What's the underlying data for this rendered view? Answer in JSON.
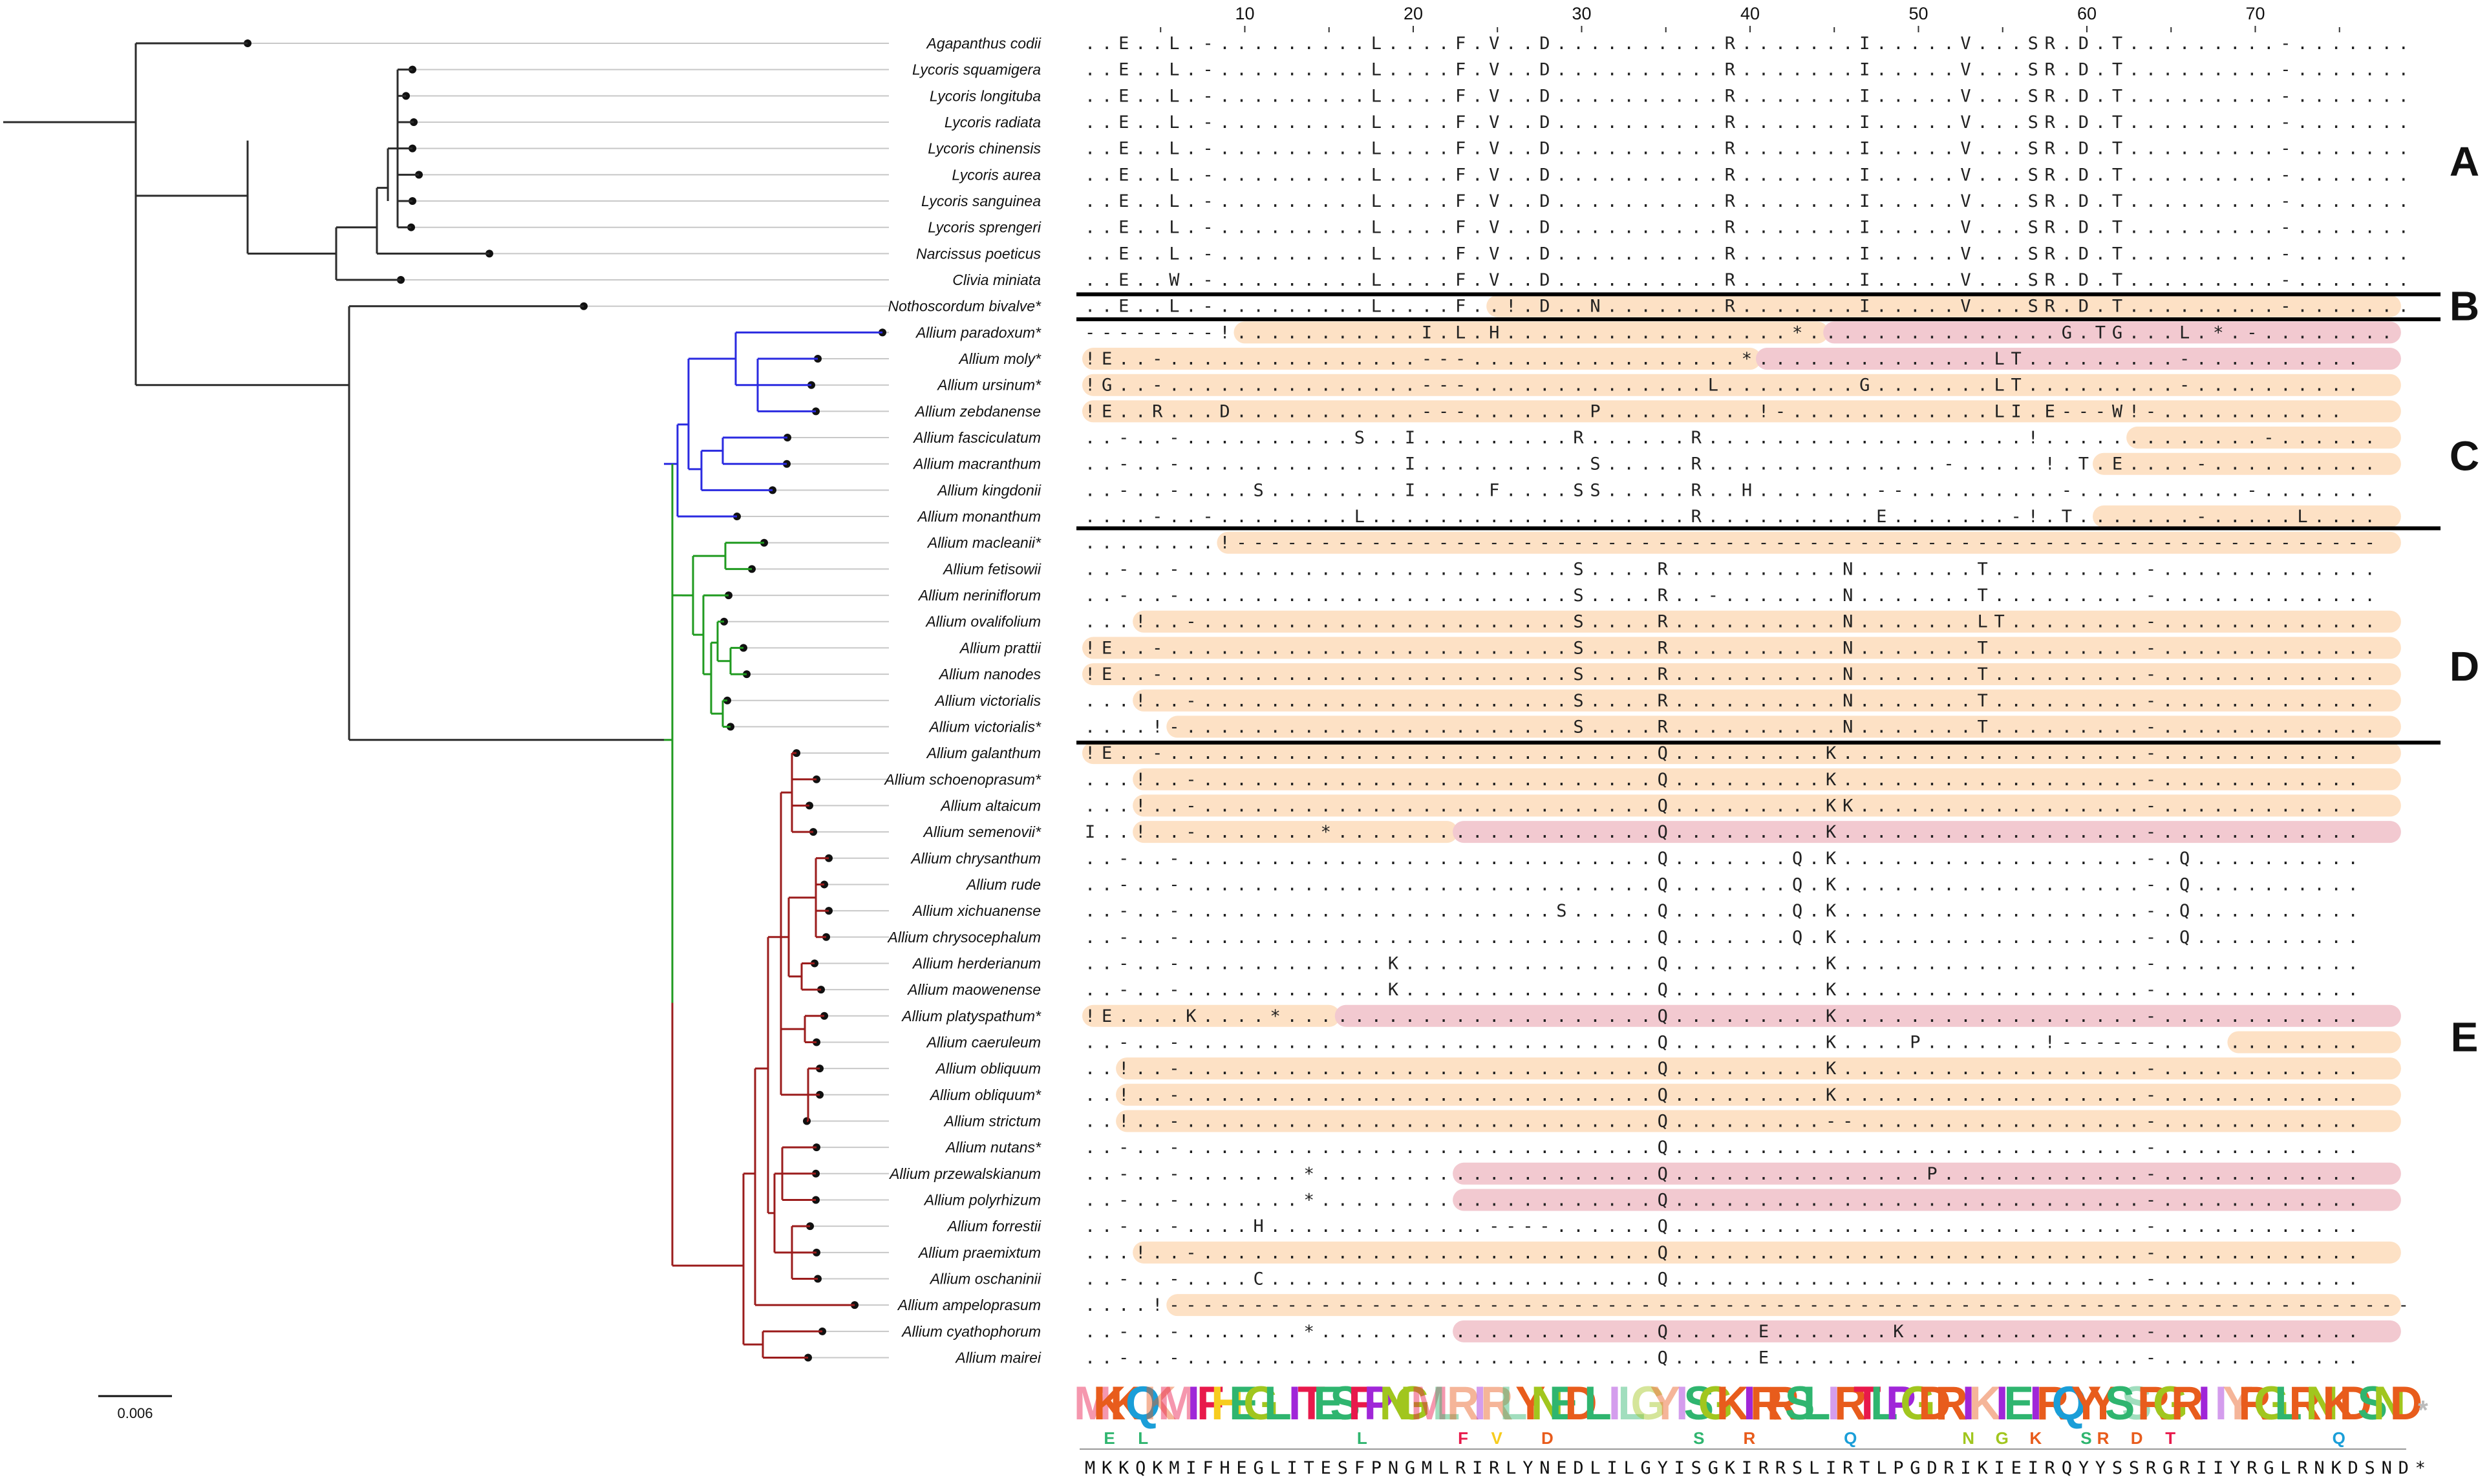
{
  "colors": {
    "backbone": "#2b2b2b",
    "clade_c": "#2a2ae0",
    "clade_d": "#1f9a1f",
    "clade_e": "#9b1c1c",
    "frameshift": "#fde1c5",
    "stop": "#f2c9d0",
    "logo": [
      "#e8194b",
      "#a1c61e",
      "#f7cc1e",
      "#a026d8",
      "#1a9ed8",
      "#e85c1c",
      "#2fb56f"
    ]
  },
  "taxa": [
    "Agapanthus codii",
    "Lycoris squamigera",
    "Lycoris longituba",
    "Lycoris radiata",
    "Lycoris chinensis",
    "Lycoris aurea",
    "Lycoris sanguinea",
    "Lycoris sprengeri",
    "Narcissus poeticus",
    "Clivia miniata",
    "Nothoscordum bivalve*",
    "Allium paradoxum*",
    "Allium moly*",
    "Allium ursinum*",
    "Allium zebdanense",
    "Allium fasciculatum",
    "Allium macranthum",
    "Allium kingdonii",
    "Allium monanthum",
    "Allium macleanii*",
    "Allium fetisowii",
    "Allium neriniflorum",
    "Allium ovalifolium",
    "Allium prattii",
    "Allium nanodes",
    "Allium victorialis",
    "Allium victorialis*",
    "Allium galanthum",
    "Allium schoenoprasum*",
    "Allium altaicum",
    "Allium semenovii*",
    "Allium chrysanthum",
    "Allium rude",
    "Allium xichuanense",
    "Allium chrysocephalum",
    "Allium herderianum",
    "Allium maowenense",
    "Allium platyspathum*",
    "Allium caeruleum",
    "Allium obliquum",
    "Allium obliquum*",
    "Allium strictum",
    "Allium nutans*",
    "Allium przewalskianum",
    "Allium polyrhizum",
    "Allium forrestii",
    "Allium praemixtum",
    "Allium oschaninii",
    "Allium ampeloprasum",
    "Allium cyathophorum",
    "Allium mairei"
  ],
  "alignment_rows": [
    "..E..L.-.........L....F.V..D..........R.......I.....V...SR.D.T.........-.......",
    "..E..L.-.........L....F.V..D..........R.......I.....V...SR.D.T.........-.......",
    "..E..L.-.........L....F.V..D..........R.......I.....V...SR.D.T.........-.......",
    "..E..L.-.........L....F.V..D..........R.......I.....V...SR.D.T.........-.......",
    "..E..L.-.........L....F.V..D..........R.......I.....V...SR.D.T.........-.......",
    "..E..L.-.........L....F.V..D..........R.......I.....V...SR.D.T.........-.......",
    "..E..L.-.........L....F.V..D..........R.......I.....V...SR.D.T.........-.......",
    "..E..L.-.........L....F.V..D..........R.......I.....V...SR.D.T.........-.......",
    "..E..L.-.........L....F.V..D..........R.......I.....V...SR.D.T.........-.......",
    "..E..W.-.........L....F.V..D..........R.......I.....V...SR.D.T.........-.......",
    "..E..L.-.........L....F..!.D..N.......R.......I.....V...SR.D.T.........-.......",
    "--------!...........I.L.H.................*...............G.TG...L.*.-........",
    "!E..-...............---................*..............LT.........-..........",
    "!G..-...............---..............L........G.......LT.........-..........",
    "!E..R...D...........---.......P.........!-............LI.E---W!-...........",
    "..-..-..........S..I.........R......R...................!.............-......",
    "..-..-.............I..........S.....R..............-.....!.T.E....-..........",
    "..-..-....S........I....F....SS.....R..H.......--.........-..........-.......",
    "....-..-........L...................R..........E.......-!.T.......-.....L....",
    "........!--------------------------------------------------------------------",
    "..-..-.......................S....R..........N.......T.........-.............",
    "..-..-.......................S....R..-.......N.......T.........-.............",
    "...!..-......................S....R..........N.......LT........-.............",
    "!E..-........................S....R..........N.......T.........-.............",
    "!E..-........................S....R..........N.......T.........-.............",
    "...!..-......................S....R..........N.......T.........-.............",
    "....!-.......................S....R..........N.......T.........-.............",
    "!E..-.............................Q.........K..................-............",
    "...!..-...........................Q.........K..................-............",
    "...!..-...........................Q.........KK.................-............",
    "I..!..-.......*...................Q.........K..................-............",
    "..-..-............................Q.......Q.K..................-.Q..........",
    "..-..-............................Q.......Q.K..................-.Q..........",
    "..-..-......................S.....Q.......Q.K..................-.Q..........",
    "..-..-............................Q.......Q.K..................-.Q..........",
    "..-..-............K...............Q.........K..................-............",
    "..-..-............K...............Q.........K..................-............",
    "!E....K....*......................Q.........K..................-............",
    "..-..-............................Q.........K....P.......!------............",
    "..!..-............................Q.........K..................-............",
    "..!..-............................Q.........K..................-............",
    "..!..-............................Q.........--.................-............",
    "..-..-............................Q............................-............",
    "..-..-.......*....................Q...............P............-............",
    "..-..-.......*....................Q............................-............",
    "..-..-....H.............----......Q............................-............",
    "...!..-...........................Q............................-............",
    "..-..-....C.......................Q............................-............",
    "....!--------------------------------------------------------------------------",
    "..-..-.......*....................Q.....E.......K..............-............",
    "..-..-............................Q.....E......................-............"
  ],
  "frameshift_bands": [
    {
      "row": 10,
      "from": 24,
      "to": 78
    },
    {
      "row": 11,
      "from": 9,
      "to": 44
    },
    {
      "row": 12,
      "from": 0,
      "to": 40
    },
    {
      "row": 13,
      "from": 0,
      "to": 78
    },
    {
      "row": 14,
      "from": 0,
      "to": 78
    },
    {
      "row": 15,
      "from": 62,
      "to": 78
    },
    {
      "row": 16,
      "from": 60,
      "to": 78
    },
    {
      "row": 18,
      "from": 60,
      "to": 78
    },
    {
      "row": 19,
      "from": 8,
      "to": 78
    },
    {
      "row": 22,
      "from": 3,
      "to": 78
    },
    {
      "row": 23,
      "from": 0,
      "to": 78
    },
    {
      "row": 24,
      "from": 0,
      "to": 78
    },
    {
      "row": 25,
      "from": 3,
      "to": 78
    },
    {
      "row": 26,
      "from": 5,
      "to": 78
    },
    {
      "row": 27,
      "from": 0,
      "to": 78
    },
    {
      "row": 28,
      "from": 3,
      "to": 78
    },
    {
      "row": 29,
      "from": 3,
      "to": 78
    },
    {
      "row": 30,
      "from": 3,
      "to": 22
    },
    {
      "row": 37,
      "from": 0,
      "to": 15
    },
    {
      "row": 38,
      "from": 68,
      "to": 78
    },
    {
      "row": 39,
      "from": 2,
      "to": 78
    },
    {
      "row": 40,
      "from": 2,
      "to": 78
    },
    {
      "row": 41,
      "from": 2,
      "to": 78
    },
    {
      "row": 46,
      "from": 3,
      "to": 78
    },
    {
      "row": 48,
      "from": 5,
      "to": 78
    }
  ],
  "stop_bands": [
    {
      "row": 11,
      "from": 44,
      "to": 78
    },
    {
      "row": 12,
      "from": 40,
      "to": 78
    },
    {
      "row": 30,
      "from": 22,
      "to": 78
    },
    {
      "row": 37,
      "from": 15,
      "to": 78
    },
    {
      "row": 43,
      "from": 22,
      "to": 78
    },
    {
      "row": 44,
      "from": 22,
      "to": 78
    },
    {
      "row": 49,
      "from": 22,
      "to": 78
    }
  ],
  "group_labels": [
    "A",
    "B",
    "C",
    "D",
    "E"
  ],
  "axis_ticks": [
    "10",
    "20",
    "30",
    "40",
    "50",
    "60",
    "70"
  ],
  "consensus": "MKKQKMIFHEGLITESFPNGMLRIRLYNEDLILGYISGKIRRSLIRTLPGDRIKIEIRQYYSSRGRIIYRGLRNKDSND*",
  "logo_secondary": [
    {
      "col": 1,
      "letter": "E"
    },
    {
      "col": 3,
      "letter": "L"
    },
    {
      "col": 16,
      "letter": "L"
    },
    {
      "col": 22,
      "letter": "F"
    },
    {
      "col": 24,
      "letter": "V"
    },
    {
      "col": 27,
      "letter": "D"
    },
    {
      "col": 36,
      "letter": "S"
    },
    {
      "col": 39,
      "letter": "R"
    },
    {
      "col": 45,
      "letter": "Q"
    },
    {
      "col": 52,
      "letter": "N"
    },
    {
      "col": 54,
      "letter": "G"
    },
    {
      "col": 56,
      "letter": "K"
    },
    {
      "col": 59,
      "letter": "S"
    },
    {
      "col": 60,
      "letter": "R"
    },
    {
      "col": 62,
      "letter": "D"
    },
    {
      "col": 64,
      "letter": "T"
    },
    {
      "col": 74,
      "letter": "Q"
    }
  ],
  "scale_bar": "0.006"
}
